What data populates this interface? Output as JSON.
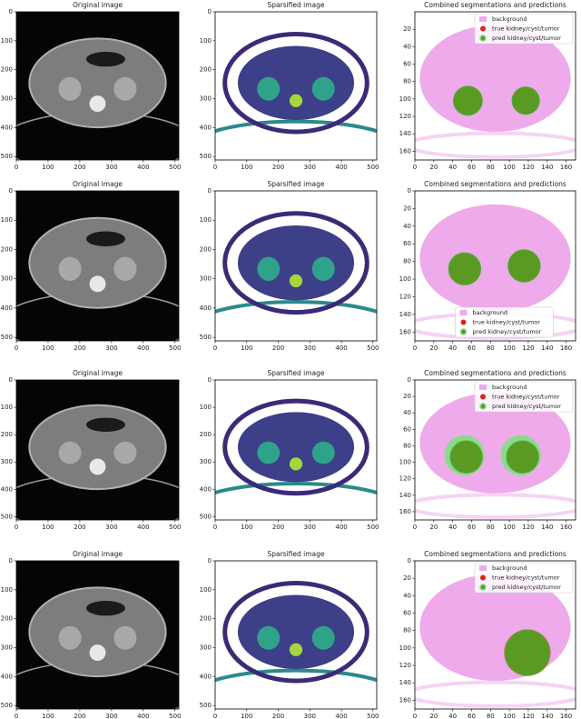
{
  "rows": [
    {
      "panels": [
        {
          "title": "Original image",
          "xticks": [
            0,
            100,
            200,
            300,
            400,
            500
          ],
          "yticks": [
            0,
            100,
            200,
            300,
            400,
            500
          ]
        },
        {
          "title": "Sparsified image",
          "xticks": [
            0,
            100,
            200,
            300,
            400,
            500
          ],
          "yticks": [
            0,
            100,
            200,
            300,
            400,
            500
          ]
        },
        {
          "title": "Combined segmentations and predictions",
          "xticks": [
            0,
            20,
            40,
            60,
            80,
            100,
            120,
            140,
            160
          ],
          "yticks": [
            20,
            40,
            60,
            80,
            100,
            120,
            140,
            160
          ],
          "legend": [
            "background",
            "true kidney/cyst/tumor",
            "pred kidney/cyst/tumor"
          ]
        }
      ]
    },
    {
      "panels": [
        {
          "title": "Original image",
          "xticks": [
            0,
            100,
            200,
            300,
            400,
            500
          ],
          "yticks": [
            0,
            100,
            200,
            300,
            400,
            500
          ]
        },
        {
          "title": "Sparsified image",
          "xticks": [
            0,
            100,
            200,
            300,
            400,
            500
          ],
          "yticks": [
            0,
            100,
            200,
            300,
            400,
            500
          ]
        },
        {
          "title": "Combined segmentations and predictions",
          "xticks": [
            0,
            20,
            40,
            60,
            80,
            100,
            120,
            140,
            160
          ],
          "yticks": [
            0,
            20,
            40,
            60,
            80,
            100,
            120,
            140,
            160
          ],
          "legend": [
            "background",
            "true kidney/cyst/tumor",
            "pred kidney/cyst/tumor"
          ]
        }
      ]
    },
    {
      "panels": [
        {
          "title": "Original image",
          "xticks": [
            0,
            100,
            200,
            300,
            400,
            500
          ],
          "yticks": [
            0,
            100,
            200,
            300,
            400,
            500
          ]
        },
        {
          "title": "Sparsified image",
          "xticks": [
            0,
            100,
            200,
            300,
            400,
            500
          ],
          "yticks": [
            0,
            100,
            200,
            300,
            400,
            500
          ]
        },
        {
          "title": "Combined segmentations and predictions",
          "xticks": [
            0,
            20,
            40,
            60,
            80,
            100,
            120,
            140,
            160
          ],
          "yticks": [
            0,
            20,
            40,
            60,
            80,
            100,
            120,
            140,
            160
          ],
          "legend": [
            "background",
            "true kidney/cyst/tumor",
            "pred kidney/cyst/tumor"
          ]
        }
      ]
    },
    {
      "panels": [
        {
          "title": "Original image",
          "xticks": [
            0,
            100,
            200,
            300,
            400,
            500
          ],
          "yticks": [
            0,
            100,
            200,
            300,
            400,
            500
          ]
        },
        {
          "title": "Sparsified image",
          "xticks": [
            0,
            100,
            200,
            300,
            400,
            500
          ],
          "yticks": [
            0,
            100,
            200,
            300,
            400,
            500
          ]
        },
        {
          "title": "Combined segmentations and predictions",
          "xticks": [
            0,
            20,
            40,
            60,
            80,
            100,
            120,
            140,
            160
          ],
          "yticks": [
            0,
            20,
            40,
            60,
            80,
            100,
            120,
            140,
            160
          ],
          "legend": [
            "background",
            "true kidney/cyst/tumor",
            "pred kidney/cyst/tumor"
          ]
        }
      ]
    }
  ]
}
